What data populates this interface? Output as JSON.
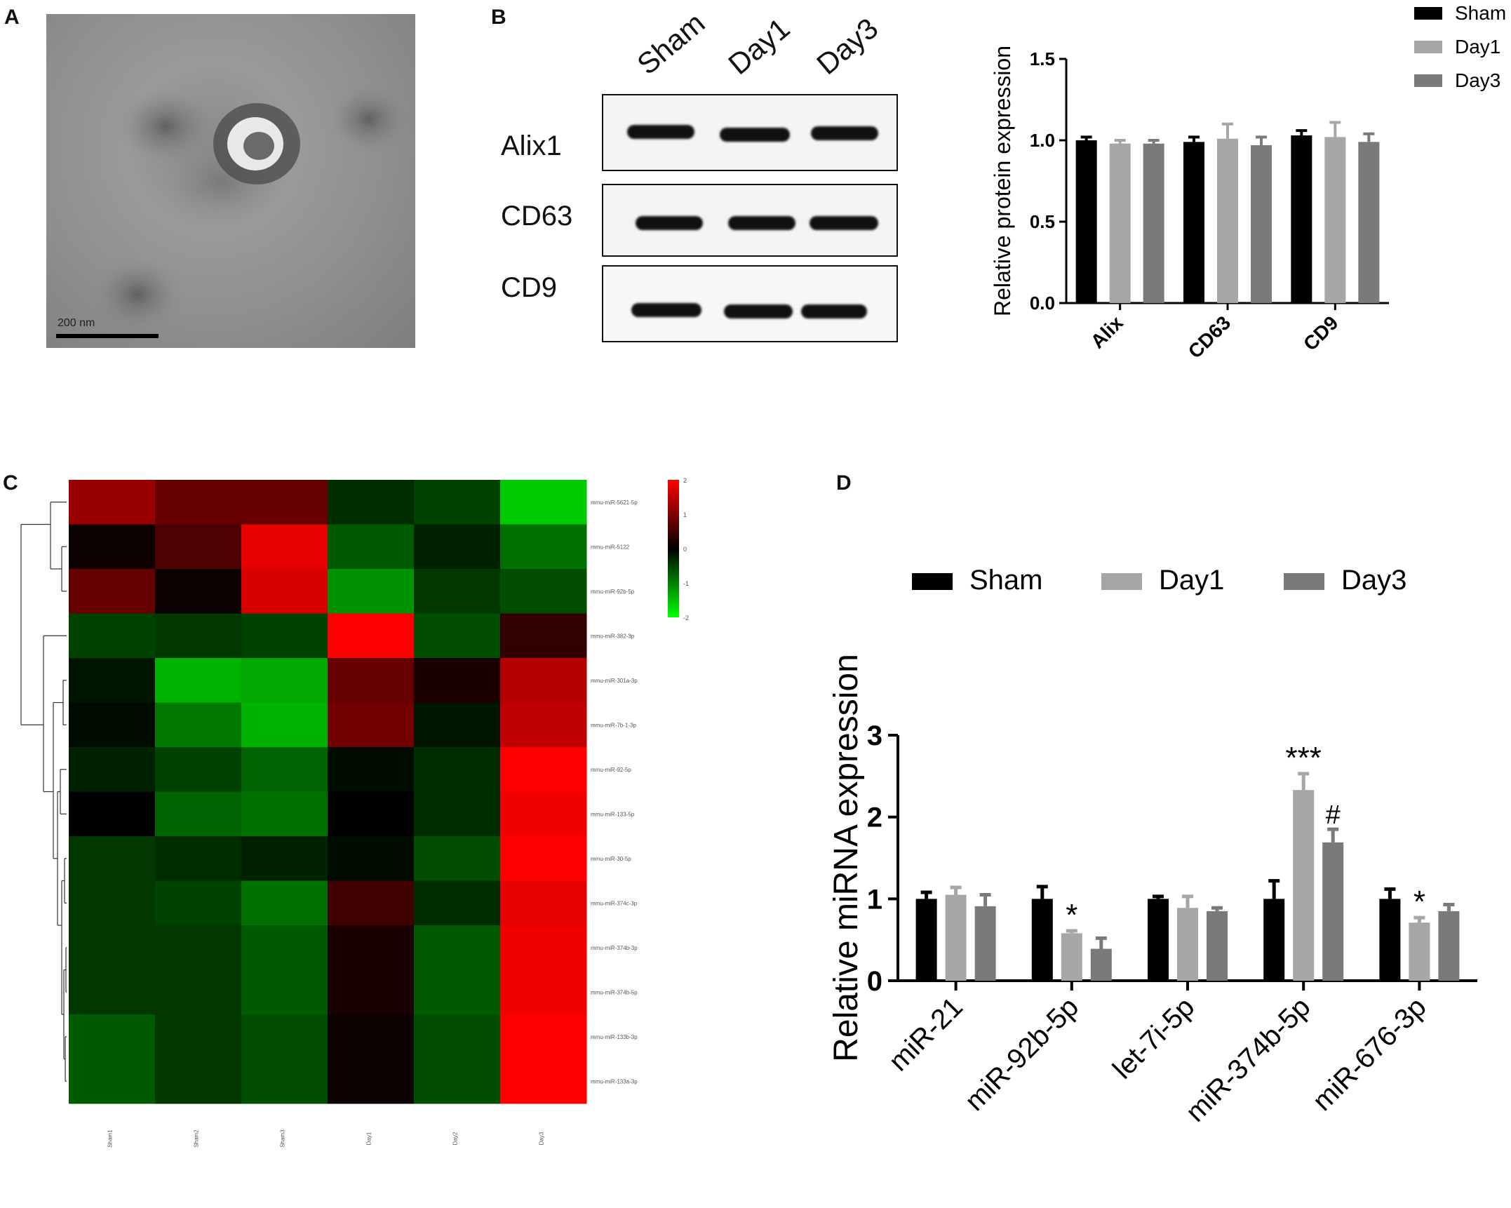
{
  "panel_labels": {
    "a": "A",
    "b": "B",
    "c": "C",
    "d": "D"
  },
  "panel_a": {
    "scale_bar_label": "200 nm"
  },
  "panel_b": {
    "lanes": [
      "Sham",
      "Day1",
      "Day3"
    ],
    "rows": [
      "Alix1",
      "CD63",
      "CD9"
    ]
  },
  "colors": {
    "sham": "#000000",
    "day1": "#a6a6a6",
    "day3": "#7a7a7a",
    "heat_high": "#ff0000",
    "heat_low": "#00e000"
  },
  "chart_data": [
    {
      "id": "B-bar",
      "type": "bar",
      "categories": [
        "Alix",
        "CD63",
        "CD9"
      ],
      "series": [
        {
          "name": "Sham",
          "values": [
            1.0,
            0.99,
            1.03
          ],
          "errors": [
            0.02,
            0.03,
            0.03
          ]
        },
        {
          "name": "Day1",
          "values": [
            0.98,
            1.01,
            1.02
          ],
          "errors": [
            0.02,
            0.09,
            0.09
          ]
        },
        {
          "name": "Day3",
          "values": [
            0.98,
            0.97,
            0.99
          ],
          "errors": [
            0.02,
            0.05,
            0.05
          ]
        }
      ],
      "ylabel": "Relative  protein expression",
      "yticks": [
        "0.0",
        "0.5",
        "1.0",
        "1.5"
      ],
      "ylim": [
        0,
        1.5
      ],
      "legend": "top-right"
    },
    {
      "id": "C-heatmap",
      "type": "heatmap",
      "rows": [
        "mmu-miR-5621-5p",
        "mmu-miR-5122",
        "mmu-miR-92b-5p",
        "mmu-miR-382-3p",
        "mmu-miR-301a-3p",
        "mmu-miR-7b-1-3p",
        "mmu-miR-92-5p",
        "mmu-miR-133-5p",
        "mmu-miR-30-5p",
        "mmu-miR-374c-3p",
        "mmu-miR-374b-3p",
        "mmu-miR-374b-5p",
        "mmu-miR-133b-3p",
        "mmu-miR-133a-3p"
      ],
      "columns": [
        "Sham1",
        "Sham2",
        "Sham3",
        "Day1",
        "Day2",
        "Day3"
      ],
      "values": [
        [
          1.2,
          0.8,
          0.8,
          -0.4,
          -0.6,
          -1.8
        ],
        [
          0.1,
          0.6,
          1.8,
          -0.8,
          -0.3,
          -1.0
        ],
        [
          0.8,
          0.1,
          1.7,
          -1.3,
          -0.5,
          -0.7
        ],
        [
          -0.6,
          -0.5,
          -0.6,
          2.0,
          -0.7,
          0.4
        ],
        [
          -0.2,
          -1.6,
          -1.5,
          0.8,
          0.2,
          1.4
        ],
        [
          -0.1,
          -1.1,
          -1.6,
          0.9,
          -0.2,
          1.5
        ],
        [
          -0.3,
          -0.6,
          -0.9,
          -0.1,
          -0.4,
          2.0
        ],
        [
          0.0,
          -0.9,
          -1.0,
          0.0,
          -0.4,
          1.9
        ],
        [
          -0.5,
          -0.4,
          -0.3,
          -0.1,
          -0.7,
          2.0
        ],
        [
          -0.5,
          -0.6,
          -1.0,
          0.5,
          -0.4,
          1.8
        ],
        [
          -0.5,
          -0.5,
          -0.8,
          0.2,
          -0.8,
          1.9
        ],
        [
          -0.5,
          -0.5,
          -0.8,
          0.2,
          -0.8,
          1.9
        ],
        [
          -0.8,
          -0.5,
          -0.7,
          0.1,
          -0.7,
          2.0
        ],
        [
          -0.8,
          -0.5,
          -0.7,
          0.1,
          -0.7,
          2.0
        ]
      ],
      "color_scale": {
        "min": -2,
        "max": 2,
        "ticks": [
          "2",
          "1",
          "0",
          "-1",
          "-2"
        ]
      }
    },
    {
      "id": "D-bar",
      "type": "bar",
      "categories": [
        "miR-21",
        "miR-92b-5p",
        "let-7i-5p",
        "miR-374b-5p",
        "miR-676-3p"
      ],
      "series": [
        {
          "name": "Sham",
          "values": [
            1.0,
            1.0,
            1.0,
            1.0,
            1.0
          ],
          "errors": [
            0.08,
            0.15,
            0.03,
            0.22,
            0.12
          ]
        },
        {
          "name": "Day1",
          "values": [
            1.05,
            0.58,
            0.89,
            2.33,
            0.71
          ],
          "errors": [
            0.09,
            0.03,
            0.14,
            0.2,
            0.06
          ]
        },
        {
          "name": "Day3",
          "values": [
            0.91,
            0.39,
            0.85,
            1.69,
            0.85
          ],
          "errors": [
            0.14,
            0.13,
            0.04,
            0.16,
            0.08
          ]
        }
      ],
      "annotations": [
        {
          "category": "miR-92b-5p",
          "series": "Day1",
          "text": "*"
        },
        {
          "category": "miR-374b-5p",
          "series": "Day1",
          "text": "***"
        },
        {
          "category": "miR-374b-5p",
          "series": "Day3",
          "text": "#"
        },
        {
          "category": "miR-676-3p",
          "series": "Day1",
          "text": "*"
        }
      ],
      "ylabel": "Relative miRNA expression",
      "yticks": [
        "0",
        "1",
        "2",
        "3"
      ],
      "ylim": [
        0,
        3
      ],
      "legend": "top"
    }
  ]
}
